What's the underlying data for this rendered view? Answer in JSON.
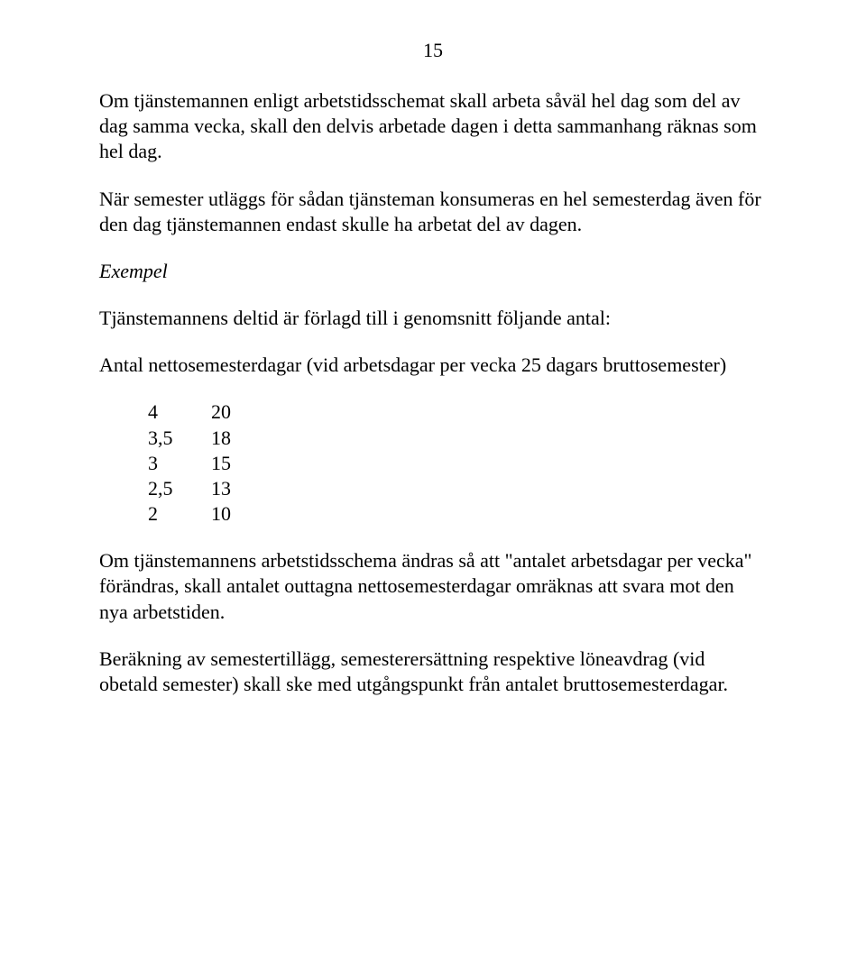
{
  "pageNumber": "15",
  "paragraphs": {
    "p1": "Om tjänstemannen enligt arbetstidsschemat skall arbeta såväl hel dag som del av dag samma vecka, skall den delvis arbetade dagen i detta sammanhang räknas som hel dag.",
    "p2": "När semester utläggs för sådan tjänsteman konsumeras en hel semesterdag även för den dag tjänstemannen endast skulle ha arbetat del av dagen.",
    "p3": "Exempel",
    "p4": "Tjänstemannens deltid är förlagd till i genomsnitt följande antal:",
    "p5": "Antal nettosemesterdagar (vid arbetsdagar per vecka 25 dagars bruttosemester)",
    "p6": "Om tjänstemannens arbetstidsschema ändras så att \"antalet arbetsdagar per vecka\" förändras, skall antalet outtagna nettosemesterdagar omräknas att svara mot den nya arbetstiden.",
    "p7": "Beräkning av semestertillägg, semesterersättning respektive löneavdrag (vid obetald semester) skall ske med utgångspunkt från antalet bruttosemesterdagar."
  },
  "table": {
    "rows": [
      {
        "left": "4",
        "right": "20"
      },
      {
        "left": "3,5",
        "right": "18"
      },
      {
        "left": "3",
        "right": "15"
      },
      {
        "left": "2,5",
        "right": "13"
      },
      {
        "left": "2",
        "right": "10"
      }
    ]
  }
}
